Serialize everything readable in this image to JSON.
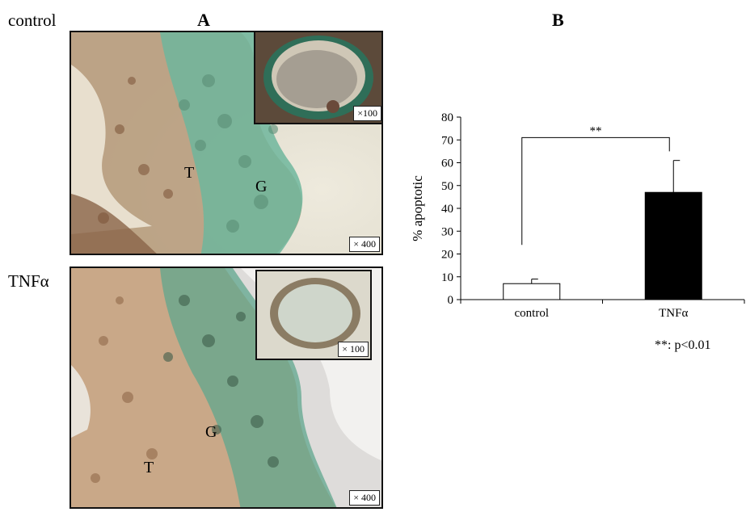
{
  "panels": {
    "a_label": "A",
    "b_label": "B"
  },
  "micrographs": {
    "control": {
      "row_label": "control",
      "main_mag": "× 400",
      "inset_mag": "×100",
      "label_t": "T",
      "label_g": "G"
    },
    "tnf": {
      "row_label": "TNFα",
      "main_mag": "× 400",
      "inset_mag": "× 100",
      "label_t": "T",
      "label_g": "G"
    }
  },
  "chart_data": {
    "type": "bar",
    "categories": [
      "control",
      "TNFα"
    ],
    "values": [
      7,
      47
    ],
    "errors": [
      2,
      14
    ],
    "bar_colors": [
      "#ffffff",
      "#000000"
    ],
    "ylabel": "% apoptotic",
    "xlabel": "",
    "ylim": [
      0,
      80
    ],
    "yticks": [
      0,
      10,
      20,
      30,
      40,
      50,
      60,
      70,
      80
    ],
    "ytick_labels": [
      "0",
      "10",
      "20",
      "30",
      "40",
      "50",
      "60",
      "70",
      "80"
    ],
    "grid": false,
    "significance": {
      "between": [
        "control",
        "TNFα"
      ],
      "label": "**",
      "bracket_y": 71,
      "left_drop_to": 24,
      "right_drop_to": 65
    },
    "footnote": "**: p<0.01"
  }
}
